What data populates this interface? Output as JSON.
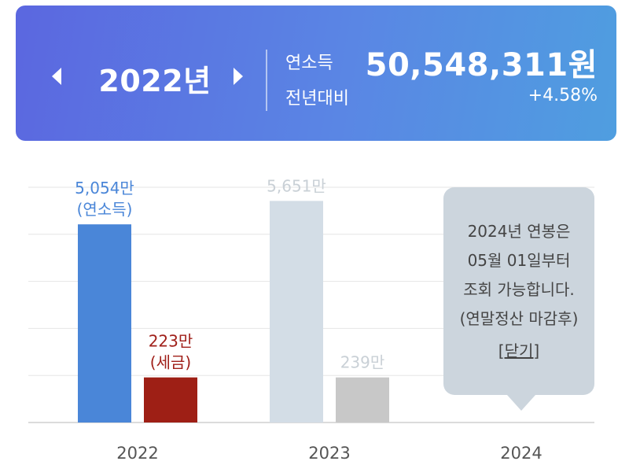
{
  "header": {
    "year_label": "2022년",
    "income_label": "연소득",
    "yoy_label": "전년대비",
    "income_value": "50,548,311원",
    "yoy_value": "+4.58%"
  },
  "chart_data": {
    "type": "bar",
    "categories": [
      "2022",
      "2023",
      "2024"
    ],
    "series": [
      {
        "values": [
          5054,
          5651,
          null
        ]
      },
      {
        "values": [
          223,
          239,
          null
        ]
      }
    ],
    "ylim": [
      0,
      6000
    ],
    "grid": true,
    "bar_labels": [
      [
        "5,054만",
        "(연소득)"
      ],
      [
        "223만",
        "(세금)"
      ],
      [
        "5,651만"
      ],
      [
        "239만"
      ]
    ],
    "colors": {
      "income_active": "#4a86d8",
      "tax_active": "#9e1f15",
      "income_inactive": "#d3dde6",
      "tax_inactive": "#c8c8c8",
      "income_label_active": "#4a86d8",
      "tax_label_active": "#a0201a",
      "label_inactive": "#c9d0d6"
    }
  },
  "tooltip": {
    "lines": [
      "2024년 연봉은",
      "05월 01일부터",
      "조회 가능합니다.",
      "(연말정산 마감후)"
    ],
    "close_label": "[닫기]"
  }
}
